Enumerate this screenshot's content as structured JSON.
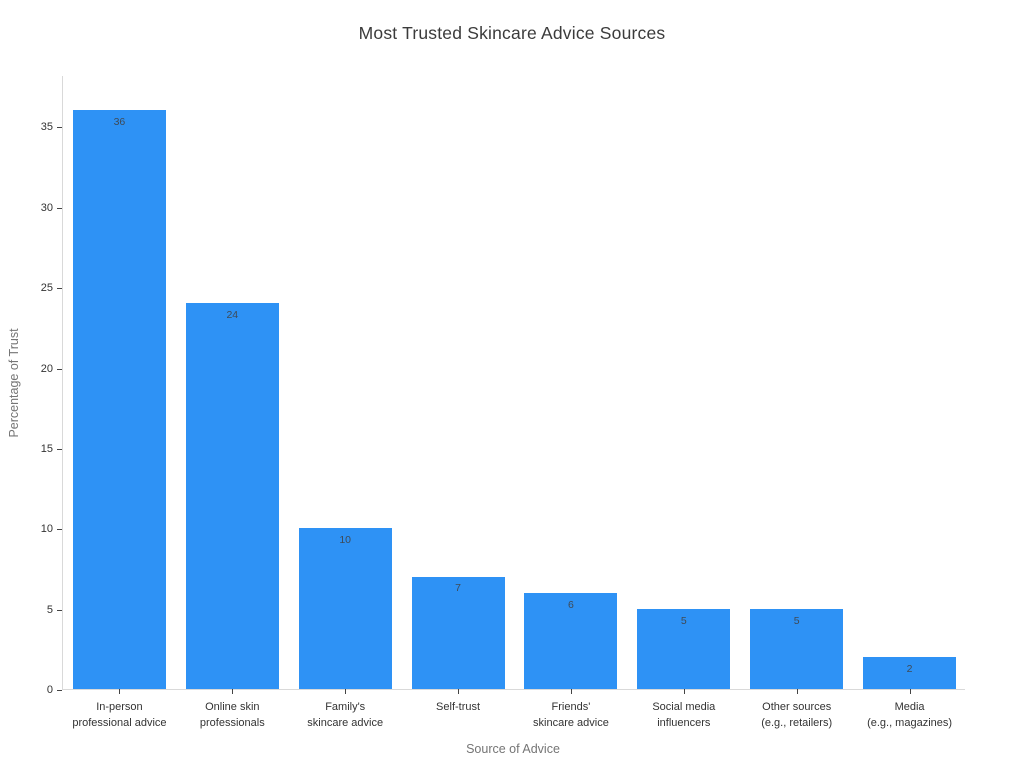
{
  "chart_data": {
    "type": "bar",
    "title": "Most Trusted Skincare Advice Sources",
    "xlabel": "Source of Advice",
    "ylabel": "Percentage of Trust",
    "categories": [
      "In-person professional advice",
      "Online skin professionals",
      "Family's skincare advice",
      "Self-trust",
      "Friends' skincare advice",
      "Social media influencers",
      "Other sources (e.g., retailers)",
      "Media (e.g., magazines)"
    ],
    "category_label_lines": [
      [
        "In-person",
        "professional advice"
      ],
      [
        "Online skin",
        "professionals"
      ],
      [
        "Family's",
        "skincare advice"
      ],
      [
        "Self-trust"
      ],
      [
        "Friends'",
        "skincare advice"
      ],
      [
        "Social media",
        "influencers"
      ],
      [
        "Other sources",
        "(e.g., retailers)"
      ],
      [
        "Media",
        "(e.g., magazines)"
      ]
    ],
    "values": [
      36,
      24,
      10,
      7,
      6,
      5,
      5,
      2
    ],
    "bar_labels_visible": true,
    "yticks": [
      0,
      5,
      10,
      15,
      20,
      25,
      30,
      35
    ],
    "ylim": [
      0,
      38.2
    ],
    "grid": false,
    "legend": "none",
    "colors": {
      "bar": "#2E92F5",
      "value_label": "#3f4a56",
      "axis_line": "#d9d9d9",
      "tick_mark": "#444444",
      "tick_label": "#333333",
      "axis_title": "#757575",
      "title": "#3b3b3b",
      "background": "#ffffff"
    }
  }
}
